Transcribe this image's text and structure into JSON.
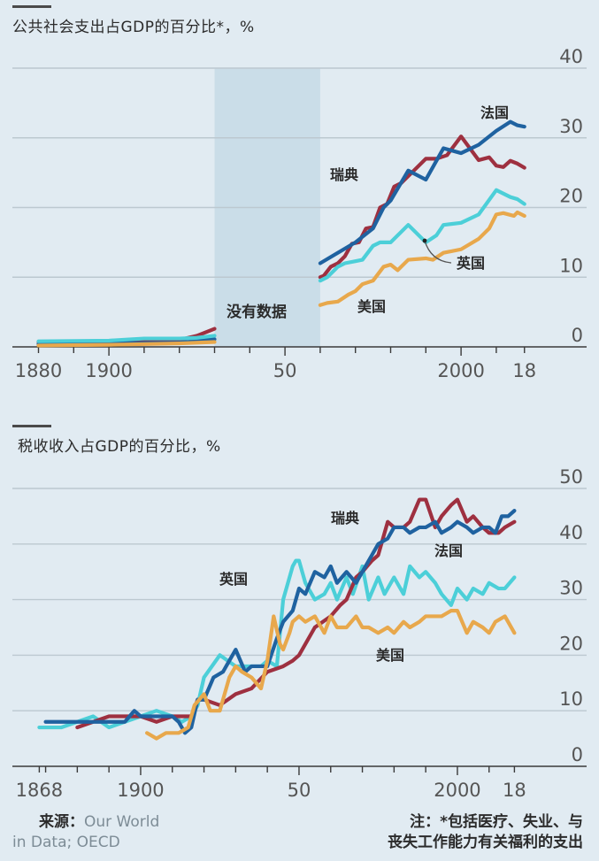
{
  "colors": {
    "background": "#e1ebf2",
    "grid": "#bcc8d0",
    "axis": "#3a3a3a",
    "nodata_band": "#cadde8",
    "france": "#1f62a0",
    "sweden": "#9e3040",
    "britain": "#4ccfd8",
    "america": "#e8a84c"
  },
  "chart_data": [
    {
      "type": "line",
      "title": "公共社会支出占GDP的百分比*，%",
      "xlabel": "",
      "ylabel": "",
      "xlim": [
        1880,
        2018
      ],
      "ylim": [
        0,
        40
      ],
      "yticks": [
        0,
        10,
        20,
        30,
        40
      ],
      "xticks": [
        1880,
        1890,
        1900,
        1910,
        1920,
        1930,
        1940,
        1950,
        1960,
        1970,
        1980,
        1990,
        2000,
        2010,
        2018
      ],
      "xtick_labels": [
        {
          "year": 1880,
          "label": "1880"
        },
        {
          "year": 1900,
          "label": "1900"
        },
        {
          "year": 1950,
          "label": "50"
        },
        {
          "year": 2000,
          "label": "2000"
        },
        {
          "year": 2018,
          "label": "18"
        }
      ],
      "grid": true,
      "y_axis_side": "right",
      "shaded_region": {
        "from": 1930,
        "to": 1960,
        "label": "没有数据"
      },
      "series": [
        {
          "key": "sweden",
          "name": "瑞典",
          "x": [
            1880,
            1890,
            1900,
            1910,
            1920,
            1925,
            1930,
            1960,
            1961,
            1963,
            1965,
            1967,
            1969,
            1971,
            1973,
            1975,
            1977,
            1979,
            1981,
            1983,
            1985,
            1990,
            1993,
            1996,
            2000,
            2005,
            2008,
            2010,
            2012,
            2014,
            2016,
            2018
          ],
          "y": [
            0.7,
            0.7,
            0.8,
            0.9,
            1.0,
            1.6,
            2.6,
            10.0,
            10.2,
            11.5,
            12.0,
            13.0,
            14.8,
            15.0,
            17.0,
            17.2,
            20.0,
            20.5,
            23.0,
            23.5,
            24.5,
            27.0,
            27.0,
            27.5,
            30.2,
            26.8,
            27.2,
            26.0,
            25.8,
            26.7,
            26.3,
            25.7
          ],
          "gap_after": 1930
        },
        {
          "key": "france",
          "name": "法国",
          "x": [
            1880,
            1900,
            1920,
            1930,
            1960,
            1970,
            1975,
            1978,
            1980,
            1985,
            1990,
            1995,
            2000,
            2005,
            2010,
            2014,
            2016,
            2018
          ],
          "y": [
            0.4,
            0.5,
            0.6,
            1.1,
            12.0,
            15.0,
            17.0,
            20.0,
            21.0,
            25.3,
            24.0,
            28.5,
            27.8,
            29.0,
            31.0,
            32.3,
            31.8,
            31.6
          ],
          "gap_after": 1930
        },
        {
          "key": "britain",
          "name": "英国",
          "x": [
            1880,
            1900,
            1910,
            1920,
            1925,
            1930,
            1960,
            1962,
            1965,
            1967,
            1970,
            1972,
            1975,
            1977,
            1980,
            1985,
            1990,
            1993,
            1995,
            2000,
            2005,
            2010,
            2014,
            2016,
            2018
          ],
          "y": [
            0.8,
            0.9,
            1.2,
            1.2,
            1.3,
            1.6,
            9.5,
            10.0,
            11.5,
            12.0,
            12.3,
            12.5,
            14.5,
            15.0,
            15.0,
            17.5,
            15.0,
            16.0,
            17.5,
            17.8,
            19.0,
            22.5,
            21.5,
            21.2,
            20.5
          ],
          "gap_after": 1930
        },
        {
          "key": "america",
          "name": "美国",
          "x": [
            1880,
            1900,
            1920,
            1930,
            1960,
            1962,
            1965,
            1968,
            1970,
            1972,
            1975,
            1978,
            1980,
            1982,
            1985,
            1990,
            1992,
            1995,
            2000,
            2005,
            2008,
            2010,
            2012,
            2015,
            2016,
            2018
          ],
          "y": [
            0.2,
            0.3,
            0.5,
            0.7,
            6.0,
            6.3,
            6.5,
            7.5,
            8.0,
            9.0,
            9.5,
            11.5,
            11.8,
            11.0,
            12.5,
            12.7,
            12.5,
            13.5,
            14.0,
            15.5,
            17.0,
            19.0,
            19.2,
            18.8,
            19.3,
            18.8
          ],
          "gap_after": 1930
        }
      ],
      "annotations": [
        {
          "text": "法国",
          "series": "france"
        },
        {
          "text": "瑞典",
          "series": "sweden"
        },
        {
          "text": "英国",
          "series": "britain",
          "pointer_year": 1990
        },
        {
          "text": "美国",
          "series": "america"
        },
        {
          "text": "没有数据",
          "series": null
        }
      ]
    },
    {
      "type": "line",
      "title": "税收收入占GDP的百分比，%",
      "xlabel": "",
      "ylabel": "",
      "xlim": [
        1868,
        2018
      ],
      "ylim": [
        0,
        50
      ],
      "yticks": [
        0,
        10,
        20,
        30,
        40,
        50
      ],
      "xticks": [
        1868,
        1870,
        1880,
        1890,
        1900,
        1910,
        1920,
        1930,
        1940,
        1950,
        1960,
        1970,
        1980,
        1990,
        2000,
        2010,
        2018
      ],
      "xtick_labels": [
        {
          "year": 1868,
          "label": "1868"
        },
        {
          "year": 1900,
          "label": "1900"
        },
        {
          "year": 1950,
          "label": "50"
        },
        {
          "year": 2000,
          "label": "2000"
        },
        {
          "year": 2018,
          "label": "18"
        }
      ],
      "grid": true,
      "y_axis_side": "right",
      "series": [
        {
          "key": "britain",
          "name": "英国",
          "x": [
            1868,
            1875,
            1880,
            1885,
            1890,
            1895,
            1900,
            1905,
            1910,
            1913,
            1916,
            1918,
            1920,
            1925,
            1930,
            1935,
            1938,
            1940,
            1943,
            1945,
            1948,
            1949,
            1950,
            1952,
            1955,
            1958,
            1960,
            1962,
            1965,
            1967,
            1970,
            1972,
            1975,
            1977,
            1980,
            1983,
            1985,
            1988,
            1990,
            1993,
            1995,
            1998,
            2000,
            2003,
            2005,
            2008,
            2010,
            2013,
            2015,
            2018
          ],
          "y": [
            7,
            7,
            8,
            9,
            7,
            8,
            9,
            10,
            9,
            8,
            9,
            11,
            16,
            20,
            18,
            18,
            18,
            19,
            18,
            30,
            36,
            37,
            37,
            33,
            30,
            31,
            33,
            30,
            34,
            31,
            36,
            30,
            34,
            31,
            34,
            31,
            36,
            34,
            35,
            33,
            31,
            29,
            32,
            30,
            32,
            31,
            33,
            32,
            32,
            34
          ]
        },
        {
          "key": "sweden",
          "name": "瑞典",
          "x": [
            1880,
            1885,
            1890,
            1895,
            1900,
            1905,
            1910,
            1913,
            1916,
            1918,
            1920,
            1925,
            1930,
            1935,
            1940,
            1945,
            1948,
            1950,
            1955,
            1960,
            1963,
            1965,
            1968,
            1970,
            1973,
            1975,
            1978,
            1980,
            1983,
            1985,
            1988,
            1990,
            1993,
            1995,
            1998,
            2000,
            2003,
            2005,
            2008,
            2010,
            2013,
            2015,
            2018
          ],
          "y": [
            7,
            8,
            9,
            9,
            9,
            8,
            9,
            9,
            9,
            12,
            12,
            11,
            13,
            14,
            17,
            18,
            19,
            20,
            25,
            27,
            29,
            30,
            34,
            35,
            37,
            38,
            44,
            43,
            43,
            44,
            48,
            48,
            43,
            45,
            47,
            48,
            44,
            45,
            43,
            42,
            42,
            43,
            44
          ]
        },
        {
          "key": "france",
          "name": "法国",
          "x": [
            1870,
            1880,
            1890,
            1895,
            1898,
            1900,
            1905,
            1910,
            1912,
            1914,
            1916,
            1918,
            1920,
            1923,
            1926,
            1930,
            1933,
            1935,
            1938,
            1940,
            1943,
            1945,
            1948,
            1950,
            1952,
            1955,
            1958,
            1960,
            1962,
            1965,
            1968,
            1970,
            1973,
            1975,
            1978,
            1980,
            1983,
            1985,
            1988,
            1990,
            1993,
            1995,
            1998,
            2000,
            2003,
            2005,
            2008,
            2010,
            2012,
            2014,
            2016,
            2018
          ],
          "y": [
            8,
            8,
            8,
            8,
            10,
            9,
            9,
            9,
            8,
            6,
            7,
            12,
            12,
            16,
            17,
            21,
            17,
            18,
            18,
            18,
            23,
            26,
            28,
            32,
            31,
            35,
            34,
            36,
            33,
            35,
            33,
            35,
            38,
            40,
            41,
            43,
            43,
            42,
            43,
            43,
            44,
            42,
            43,
            44,
            43,
            42,
            43,
            43,
            42,
            45,
            45,
            46
          ]
        },
        {
          "key": "america",
          "name": "美国",
          "x": [
            1902,
            1905,
            1908,
            1910,
            1912,
            1915,
            1917,
            1920,
            1922,
            1925,
            1928,
            1930,
            1932,
            1935,
            1938,
            1940,
            1942,
            1944,
            1945,
            1947,
            1948,
            1950,
            1952,
            1955,
            1958,
            1960,
            1962,
            1965,
            1968,
            1970,
            1972,
            1975,
            1978,
            1980,
            1983,
            1985,
            1988,
            1990,
            1993,
            1995,
            1998,
            2000,
            2003,
            2005,
            2008,
            2010,
            2012,
            2015,
            2016,
            2018
          ],
          "y": [
            6,
            5,
            6,
            6,
            6,
            7,
            11,
            13,
            10,
            10,
            16,
            18,
            17,
            16,
            14,
            19,
            27,
            22,
            21,
            24,
            26,
            27,
            26,
            27,
            24,
            27,
            25,
            25,
            27,
            25,
            25,
            24,
            25,
            24,
            26,
            25,
            26,
            27,
            27,
            27,
            28,
            28,
            24,
            26,
            25,
            24,
            26,
            27,
            26,
            24
          ]
        }
      ],
      "annotations": [
        {
          "text": "瑞典",
          "series": "sweden"
        },
        {
          "text": "法国",
          "series": "france"
        },
        {
          "text": "英国",
          "series": "britain"
        },
        {
          "text": "美国",
          "series": "america"
        }
      ]
    }
  ],
  "footer": {
    "source_key": "来源：",
    "source_line1": "Our World",
    "source_line2": "in Data; OECD",
    "note_line1": "注：*包括医疗、失业、与",
    "note_line2": "丧失工作能力有关福利的支出"
  }
}
